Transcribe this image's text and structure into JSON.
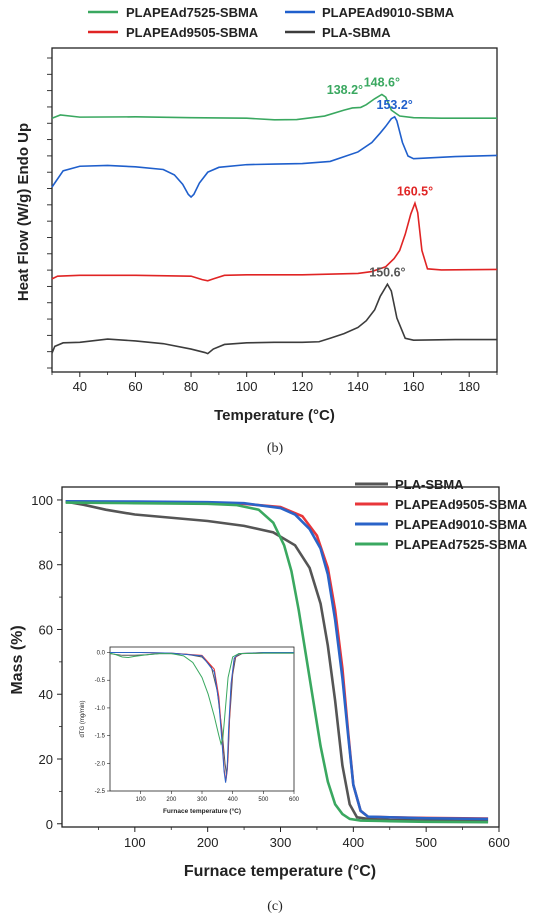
{
  "chart_data": [
    {
      "type": "line",
      "panel_label": "(b)",
      "xlabel": "Temperature (°C)",
      "ylabel": "Heat Flow (W/g) Endo Up",
      "xlim": [
        30,
        190
      ],
      "xticks": [
        40,
        60,
        80,
        100,
        120,
        140,
        160,
        180
      ],
      "y_tick_labels_shown": false,
      "legend_placement": "top",
      "legend": [
        {
          "name": "PLAPEAd7525-SBMA",
          "color": "#3aa860"
        },
        {
          "name": "PLAPEAd9010-SBMA",
          "color": "#1f5fcc"
        },
        {
          "name": "PLAPEAd9505-SBMA",
          "color": "#e02424"
        },
        {
          "name": "PLA-SBMA",
          "color": "#3c3c3c"
        }
      ],
      "series": [
        {
          "name": "PLAPEAd7525-SBMA",
          "color": "#3aa860",
          "offset": 8.6,
          "x": [
            30,
            33,
            40,
            60,
            80,
            100,
            110,
            118,
            128,
            135,
            138,
            141,
            143,
            146,
            148.6,
            150,
            152,
            155,
            160,
            170,
            190
          ],
          "y": [
            0,
            0.12,
            0.04,
            0.05,
            0.02,
            0.0,
            -0.06,
            -0.05,
            0.08,
            0.3,
            0.38,
            0.4,
            0.5,
            0.72,
            0.88,
            0.78,
            0.3,
            0.08,
            0.02,
            0.0,
            0.0
          ]
        },
        {
          "name": "PLAPEAd9010-SBMA",
          "color": "#1f5fcc",
          "offset": 6.2,
          "x": [
            30,
            31,
            34,
            40,
            50,
            60,
            70,
            74,
            77,
            79,
            80,
            81,
            83,
            86,
            90,
            100,
            110,
            120,
            130,
            140,
            145,
            148,
            150,
            152,
            153.2,
            154,
            156,
            158,
            160,
            175,
            190
          ],
          "y": [
            -0.15,
            0.0,
            0.45,
            0.62,
            0.65,
            0.6,
            0.5,
            0.3,
            -0.05,
            -0.42,
            -0.52,
            -0.42,
            0.0,
            0.4,
            0.58,
            0.68,
            0.7,
            0.72,
            0.8,
            1.15,
            1.5,
            1.85,
            2.1,
            2.38,
            2.45,
            2.3,
            1.5,
            1.0,
            0.9,
            0.98,
            1.02
          ]
        },
        {
          "name": "PLAPEAd9505-SBMA",
          "color": "#e02424",
          "offset": 2.7,
          "x": [
            30,
            32,
            40,
            60,
            80,
            84,
            86,
            88,
            92,
            100,
            120,
            140,
            145,
            150,
            153,
            155,
            157,
            159,
            160.5,
            161.5,
            163,
            165,
            170,
            190
          ],
          "y": [
            -0.05,
            0.05,
            0.08,
            0.08,
            0.05,
            -0.08,
            -0.12,
            -0.05,
            0.08,
            0.1,
            0.1,
            0.15,
            0.22,
            0.4,
            0.7,
            1.0,
            1.6,
            2.35,
            2.75,
            2.4,
            1.0,
            0.32,
            0.28,
            0.3
          ]
        },
        {
          "name": "PLA-SBMA",
          "color": "#3c3c3c",
          "offset": 0.0,
          "x": [
            30,
            31,
            34,
            40,
            50,
            60,
            70,
            80,
            85,
            86,
            88,
            92,
            100,
            110,
            120,
            126,
            130,
            135,
            140,
            143,
            146,
            148,
            150.6,
            152,
            154,
            157,
            160,
            175,
            190
          ],
          "y": [
            -0.1,
            0.15,
            0.28,
            0.3,
            0.42,
            0.35,
            0.25,
            0.05,
            -0.08,
            -0.12,
            0.05,
            0.22,
            0.28,
            0.3,
            0.3,
            0.32,
            0.45,
            0.62,
            0.85,
            1.1,
            1.5,
            2.0,
            2.45,
            2.2,
            1.2,
            0.45,
            0.38,
            0.4,
            0.4
          ]
        }
      ],
      "ylim": [
        -0.8,
        11.2
      ],
      "annotations": [
        {
          "text": "138.2°",
          "x": 138.2,
          "series": 0,
          "color": "#3aa860"
        },
        {
          "text": "148.6°",
          "x": 148.6,
          "series": 0,
          "color": "#3aa860"
        },
        {
          "text": "153.2°",
          "x": 153.2,
          "series": 1,
          "color": "#1f5fcc"
        },
        {
          "text": "160.5°",
          "x": 160.5,
          "series": 2,
          "color": "#e02424"
        },
        {
          "text": "150.6°",
          "x": 150.6,
          "series": 3,
          "color": "#555555"
        }
      ]
    },
    {
      "type": "line",
      "panel_label": "(c)",
      "xlabel": "Furnace temperature (°C)",
      "ylabel": "Mass (%)",
      "xlim": [
        0,
        600
      ],
      "ylim": [
        -1,
        104
      ],
      "xticks": [
        100,
        200,
        300,
        400,
        500,
        600
      ],
      "yticks": [
        0,
        20,
        40,
        60,
        80,
        100
      ],
      "legend_placement": "top-right",
      "legend": [
        {
          "name": "PLA-SBMA",
          "color": "#555555"
        },
        {
          "name": "PLAPEAd9505-SBMA",
          "color": "#e8363a"
        },
        {
          "name": "PLAPEAd9010-SBMA",
          "color": "#2a63c8"
        },
        {
          "name": "PLAPEAd7525-SBMA",
          "color": "#3aa860"
        }
      ],
      "series": [
        {
          "name": "PLA-SBMA",
          "color": "#555555",
          "x": [
            5,
            30,
            60,
            100,
            150,
            200,
            250,
            290,
            320,
            340,
            355,
            365,
            375,
            385,
            395,
            405,
            420,
            450,
            500,
            585
          ],
          "y": [
            99.5,
            98.5,
            97,
            95.5,
            94.5,
            93.5,
            92,
            90,
            86,
            79,
            68,
            55,
            38,
            18,
            6,
            2,
            1.5,
            1.2,
            1.0,
            0.8
          ]
        },
        {
          "name": "PLAPEAd9505-SBMA",
          "color": "#e8363a",
          "x": [
            5,
            100,
            200,
            250,
            300,
            330,
            350,
            365,
            375,
            385,
            393,
            400,
            410,
            420,
            450,
            500,
            585
          ],
          "y": [
            99.5,
            99.3,
            99.1,
            98.8,
            97.8,
            95,
            89,
            79,
            66,
            48,
            28,
            12,
            4,
            2.2,
            2.0,
            1.8,
            1.6
          ]
        },
        {
          "name": "PLAPEAd9010-SBMA",
          "color": "#2a63c8",
          "x": [
            5,
            100,
            200,
            250,
            300,
            320,
            340,
            355,
            365,
            375,
            385,
            393,
            400,
            410,
            420,
            450,
            500,
            585
          ],
          "y": [
            99.6,
            99.5,
            99.3,
            99,
            97.5,
            95.5,
            91,
            85,
            77,
            63,
            45,
            27,
            12,
            4,
            2.2,
            2.0,
            1.7,
            1.5
          ]
        },
        {
          "name": "PLAPEAd7525-SBMA",
          "color": "#3aa860",
          "x": [
            5,
            100,
            200,
            240,
            270,
            290,
            305,
            315,
            325,
            335,
            345,
            355,
            365,
            375,
            385,
            395,
            410,
            450,
            500,
            585
          ],
          "y": [
            99.2,
            99,
            98.8,
            98.4,
            97,
            93,
            86,
            78,
            66,
            52,
            38,
            24,
            13,
            6,
            3,
            1.5,
            1.0,
            0.8,
            0.6,
            0.5
          ]
        }
      ],
      "inset": {
        "ylabel": "dTG (mg/min)",
        "xlabel": "Furnace temperature (°C)",
        "xlim": [
          0,
          600
        ],
        "ylim": [
          -2.5,
          0.1
        ],
        "xticks": [
          100,
          200,
          300,
          400,
          500,
          600
        ],
        "yticks": [
          0.0,
          -0.5,
          -1.0,
          -1.5,
          -2.0,
          -2.5
        ],
        "ytick_labels": [
          "0.0",
          "-0.5",
          "-1.0",
          "-1.5",
          "-2.0",
          "-2.5"
        ],
        "series": [
          {
            "name": "PLA-SBMA",
            "color": "#555555",
            "x": [
              0,
              40,
              80,
              120,
              160,
              200,
              250,
              300,
              330,
              350,
              365,
              375,
              380,
              385,
              390,
              400,
              410,
              430,
              500,
              600
            ],
            "y": [
              -0.02,
              -0.05,
              -0.05,
              -0.04,
              -0.02,
              -0.02,
              -0.03,
              -0.08,
              -0.25,
              -0.7,
              -1.4,
              -2.0,
              -2.2,
              -1.9,
              -1.2,
              -0.4,
              -0.08,
              -0.02,
              -0.01,
              -0.01
            ]
          },
          {
            "name": "PLAPEAd9505-SBMA",
            "color": "#e8363a",
            "x": [
              0,
              100,
              200,
              300,
              340,
              355,
              365,
              372,
              378,
              383,
              388,
              395,
              405,
              420,
              500,
              600
            ],
            "y": [
              0,
              0,
              -0.01,
              -0.05,
              -0.3,
              -0.8,
              -1.5,
              -2.1,
              -2.32,
              -2.1,
              -1.4,
              -0.6,
              -0.12,
              -0.02,
              0,
              0
            ]
          },
          {
            "name": "PLAPEAd9010-SBMA",
            "color": "#2a63c8",
            "x": [
              0,
              100,
              200,
              300,
              340,
              355,
              365,
              372,
              377,
              382,
              387,
              395,
              405,
              420,
              500,
              600
            ],
            "y": [
              0,
              0,
              -0.01,
              -0.06,
              -0.35,
              -0.9,
              -1.6,
              -2.15,
              -2.35,
              -2.1,
              -1.35,
              -0.55,
              -0.1,
              -0.02,
              0,
              0
            ]
          },
          {
            "name": "PLAPEAd7525-SBMA",
            "color": "#3aa860",
            "x": [
              0,
              20,
              40,
              60,
              80,
              120,
              160,
              200,
              240,
              270,
              300,
              320,
              340,
              355,
              362,
              368,
              375,
              385,
              400,
              420,
              500,
              600
            ],
            "y": [
              -0.01,
              -0.04,
              -0.08,
              -0.09,
              -0.07,
              -0.04,
              -0.02,
              -0.02,
              -0.06,
              -0.18,
              -0.45,
              -0.75,
              -1.15,
              -1.5,
              -1.65,
              -1.55,
              -1.1,
              -0.45,
              -0.08,
              -0.02,
              -0.01,
              -0.01
            ]
          }
        ]
      }
    }
  ]
}
